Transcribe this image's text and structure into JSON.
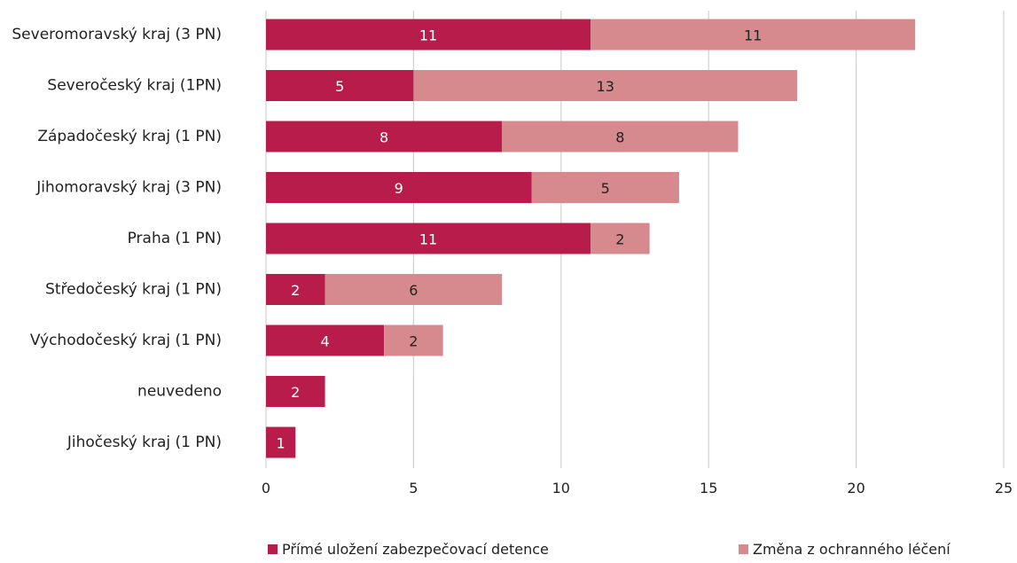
{
  "chart_data": {
    "type": "bar",
    "orientation": "horizontal",
    "stacked": true,
    "categories": [
      "Severomoravský kraj (3 PN)",
      "Severočeský kraj (1PN)",
      "Západočeský kraj (1 PN)",
      "Jihomoravský kraj (3 PN)",
      "Praha (1 PN)",
      "Středočeský kraj (1 PN)",
      "Východočeský kraj (1 PN)",
      "neuvedeno",
      "Jihočeský kraj (1 PN)"
    ],
    "series": [
      {
        "name": "Přímé uložení zabezpečovací detence",
        "color": "#b71c4a",
        "label_color": "#ffffff",
        "values": [
          11,
          5,
          8,
          9,
          11,
          2,
          4,
          2,
          1
        ]
      },
      {
        "name": "Změna z ochranného léčení",
        "color": "#d68a8e",
        "label_color": "#222222",
        "values": [
          11,
          13,
          8,
          5,
          2,
          6,
          2,
          0,
          0
        ]
      }
    ],
    "xlim": [
      0,
      25
    ],
    "xticks": [
      0,
      5,
      10,
      15,
      20,
      25
    ],
    "grid": "vertical",
    "legend_position": "bottom",
    "title": "",
    "xlabel": "",
    "ylabel": ""
  }
}
